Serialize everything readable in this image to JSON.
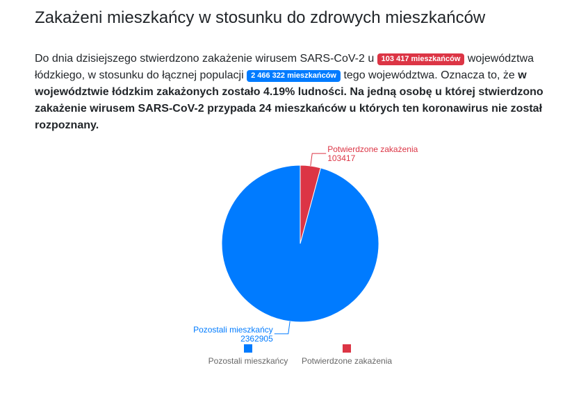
{
  "heading": "Zakażeni mieszkańcy w stosunku do zdrowych mieszkańców",
  "intro": {
    "t1": "Do dnia dzisiejszego stwierdzono zakażenie wirusem SARS-CoV-2 u ",
    "badge_infected": "103 417 mieszkańców",
    "t2": " województwa łódzkiego, w stosunku do łącznej populacji ",
    "badge_population": "2 466 322 mieszkańców",
    "t3": " tego województwa. Oznacza to, że ",
    "bold": "w województwie łódzkim zakażonych zostało 4.19% ludności. Na jedną osobę u której stwierdzono zakażenie wirusem SARS-CoV-2 przypada 24 mieszkańców u których ten koronawirus nie został rozpoznany."
  },
  "chart_data": {
    "type": "pie",
    "title": "",
    "start_angle_deg": 90,
    "legend_position": "bottom",
    "slices": [
      {
        "label": "Potwierdzone zakażenia",
        "value": 103417,
        "color": "#dc3545"
      },
      {
        "label": "Pozostali mieszkańcy",
        "value": 2362905,
        "color": "#007bff"
      }
    ]
  }
}
